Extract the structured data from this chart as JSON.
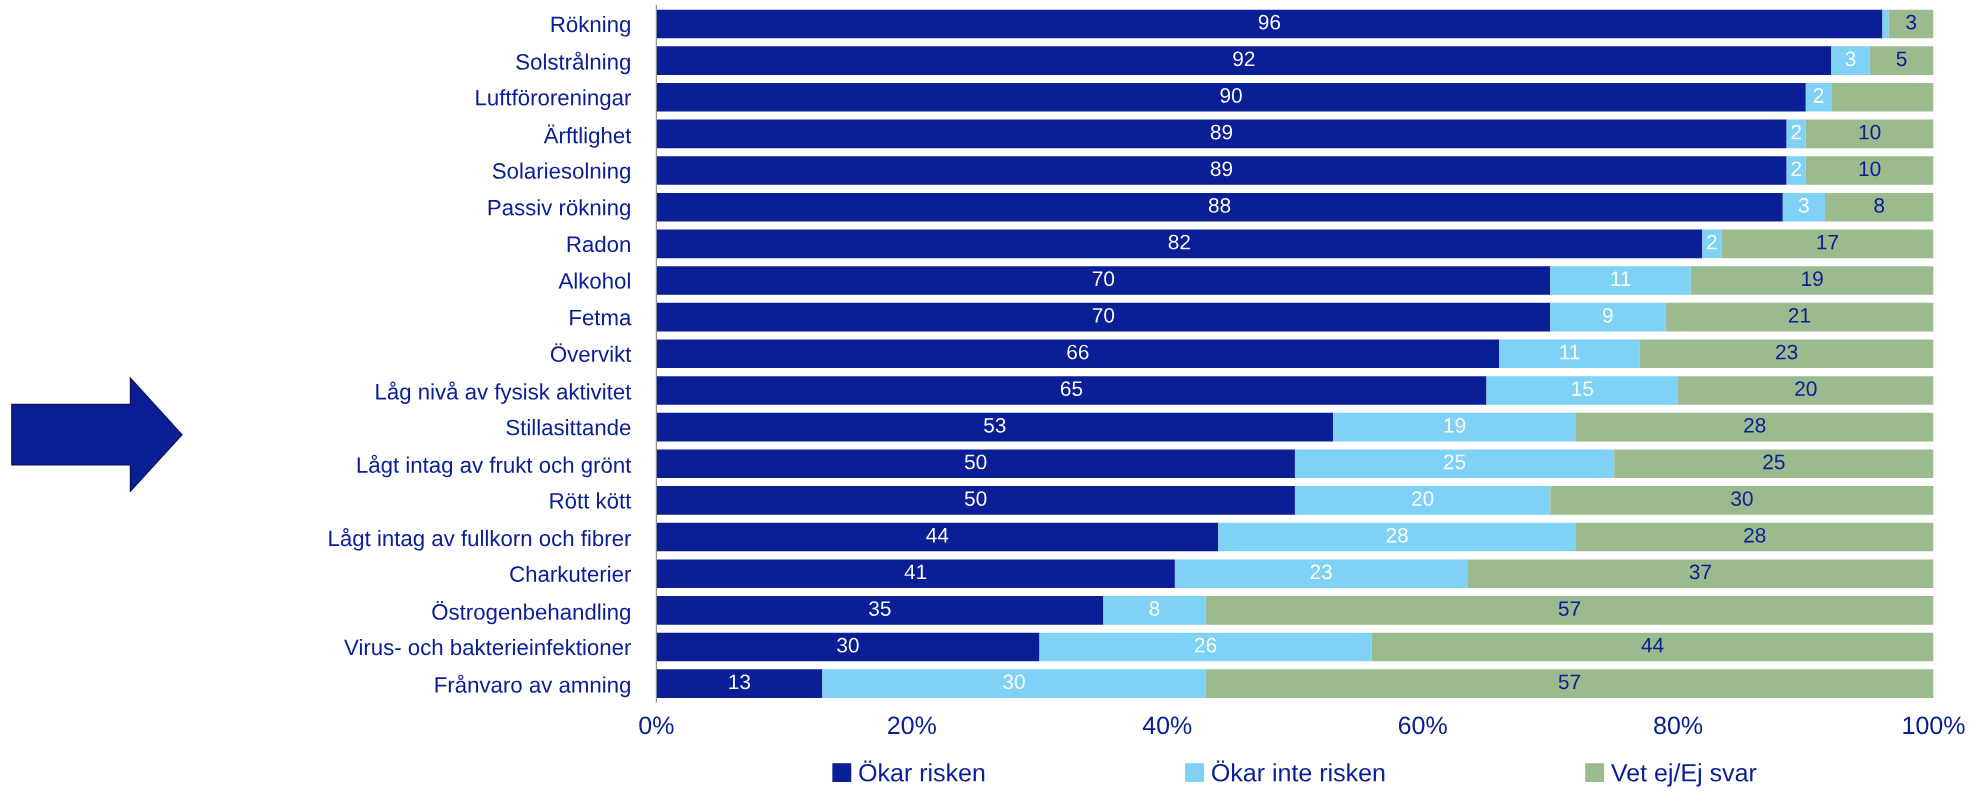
{
  "chart_data": {
    "type": "bar",
    "orientation": "horizontal",
    "stacked": true,
    "categories": [
      "Rökning",
      "Solstrålning",
      "Luftföroreningar",
      "Ärftlighet",
      "Solariesolning",
      "Passiv rökning",
      "Radon",
      "Alkohol",
      "Fetma",
      "Övervikt",
      "Låg nivå av fysisk aktivitet",
      "Stillasittande",
      "Lågt intag av frukt och grönt",
      "Rött kött",
      "Lågt intag av fullkorn och fibrer",
      "Charkuterier",
      "Östrogenbehandling",
      "Virus- och bakterieinfektioner",
      "Frånvaro av amning"
    ],
    "series": [
      {
        "name": "Ökar risken",
        "color": "#0a1f96",
        "values": [
          96,
          92,
          90,
          88.5,
          88.5,
          88.2,
          81.9,
          70,
          70,
          66,
          65,
          53,
          50,
          50,
          44,
          40.6,
          35,
          30,
          13
        ],
        "value_labels": [
          "96",
          "92",
          "90",
          "89",
          "89",
          "88",
          "82",
          "70",
          "70",
          "66",
          "65",
          "53",
          "50",
          "50",
          "44",
          "41",
          "35",
          "30",
          "13"
        ]
      },
      {
        "name": "Ökar inte risken",
        "color": "#7fd1f5",
        "values": [
          0.5,
          3,
          2,
          1.5,
          1.5,
          3.3,
          1.5,
          11,
          9,
          11,
          15,
          19,
          25,
          20,
          28,
          22.9,
          8,
          26,
          30
        ],
        "value_labels": [
          null,
          "3",
          "2",
          "2",
          "2",
          "3",
          "2",
          "11",
          "9",
          "11",
          "15",
          "19",
          "25",
          "20",
          "28",
          "23",
          "8",
          "26",
          "30"
        ]
      },
      {
        "name": "Vet ej/Ej svar",
        "color": "#9bbb8f",
        "values": [
          3.5,
          5,
          8,
          10,
          10,
          8.5,
          16.6,
          19,
          21,
          23,
          20,
          28,
          25,
          30,
          28,
          36.5,
          57,
          44,
          57
        ],
        "value_labels": [
          "3",
          "5",
          null,
          "10",
          "10",
          "8",
          "17",
          "19",
          "21",
          "23",
          "20",
          "28",
          "25",
          "30",
          "28",
          "37",
          "57",
          "44",
          "57"
        ]
      }
    ],
    "xlim": [
      0,
      100
    ],
    "xticks": [
      {
        "value": 0,
        "label": "0%"
      },
      {
        "value": 20,
        "label": "20%"
      },
      {
        "value": 40,
        "label": "40%"
      },
      {
        "value": 60,
        "label": "60%"
      },
      {
        "value": 80,
        "label": "80%"
      },
      {
        "value": 100,
        "label": "100%"
      }
    ],
    "grid": false,
    "legend": "bottom"
  }
}
